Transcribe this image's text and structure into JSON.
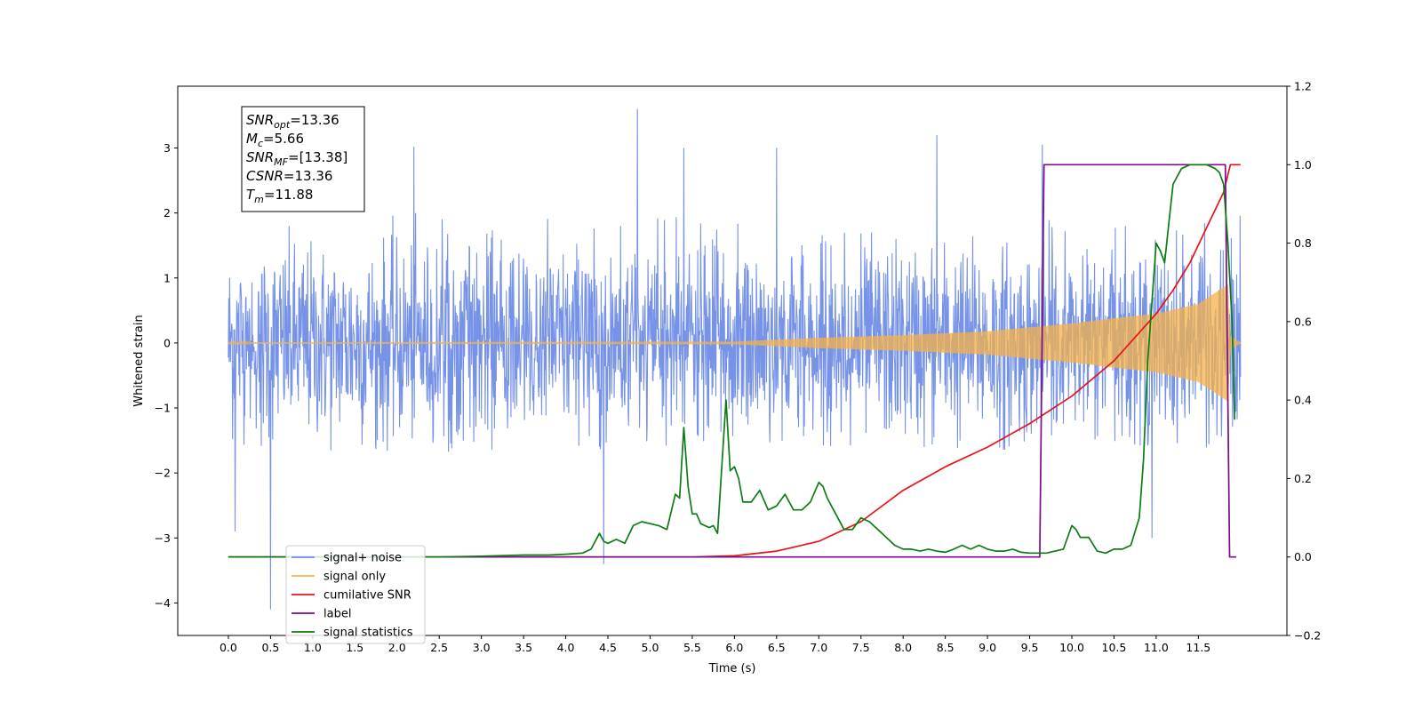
{
  "chart_data": {
    "type": "line",
    "title": "",
    "xlabel": "Time (s)",
    "ylabel": "Whitened strain",
    "xlim": [
      -0.6,
      12.55
    ],
    "ylim": [
      -4.5,
      3.95
    ],
    "y2lim": [
      -0.2,
      1.2
    ],
    "x_ticks": [
      0.0,
      0.5,
      1.0,
      1.5,
      2.0,
      2.5,
      3.0,
      3.5,
      4.0,
      4.5,
      5.0,
      5.5,
      6.0,
      6.5,
      7.0,
      7.5,
      8.0,
      8.5,
      9.0,
      9.5,
      10.0,
      10.5,
      11.0,
      11.5
    ],
    "x_tick_labels": [
      "0.0",
      "0.5",
      "1.0",
      "1.5",
      "2.0",
      "2.5",
      "3.0",
      "3.5",
      "4.0",
      "4.5",
      "5.0",
      "5.5",
      "6.0",
      "6.5",
      "7.0",
      "7.5",
      "8.0",
      "8.5",
      "9.0",
      "9.5",
      "10.0",
      "10.5",
      "11.0",
      "11.5"
    ],
    "y_ticks": [
      -4,
      -3,
      -2,
      -1,
      0,
      1,
      2,
      3
    ],
    "y_tick_labels": [
      "−4",
      "−3",
      "−2",
      "−1",
      "0",
      "1",
      "2",
      "3"
    ],
    "y2_ticks": [
      -0.2,
      0.0,
      0.2,
      0.4,
      0.6,
      0.8,
      1.0,
      1.2
    ],
    "y2_tick_labels": [
      "−0.2",
      "0.0",
      "0.2",
      "0.4",
      "0.6",
      "0.8",
      "1.0",
      "1.2"
    ],
    "grid": false,
    "legend_position": "lower-left",
    "annotation": {
      "lines": [
        {
          "base": "SNR",
          "sub": "opt",
          "value": "=13.36"
        },
        {
          "base": "M",
          "sub": "c",
          "value": "=5.66"
        },
        {
          "base": "SNR",
          "sub": "MF",
          "value": "=[13.38]"
        },
        {
          "base": "CSNR",
          "sub": "",
          "value": "=13.36"
        },
        {
          "base": "T",
          "sub": "m",
          "value": "=11.88"
        }
      ]
    },
    "series": [
      {
        "name": "signal+ noise",
        "axis": "left",
        "color": "#6f8de6",
        "style": "noise",
        "x_range": [
          0.0,
          12.0
        ],
        "typical_max": 2.0,
        "typical_min": -1.7,
        "peaks": [
          [
            0.5,
            -4.1
          ],
          [
            4.45,
            -3.4
          ],
          [
            4.85,
            3.6
          ],
          [
            2.2,
            3.02
          ],
          [
            5.4,
            3.0
          ],
          [
            8.4,
            3.2
          ],
          [
            9.65,
            3.05
          ],
          [
            6.5,
            3.0
          ],
          [
            0.08,
            -2.9
          ],
          [
            10.95,
            -3.0
          ]
        ]
      },
      {
        "name": "signal only",
        "axis": "left",
        "color": "#f5b24a",
        "style": "chirp",
        "x_range": [
          0.0,
          12.0
        ],
        "envelope": [
          [
            0.0,
            0.01
          ],
          [
            6.0,
            0.02
          ],
          [
            7.0,
            0.08
          ],
          [
            8.0,
            0.12
          ],
          [
            9.0,
            0.18
          ],
          [
            9.5,
            0.24
          ],
          [
            10.0,
            0.3
          ],
          [
            10.5,
            0.38
          ],
          [
            11.0,
            0.45
          ],
          [
            11.5,
            0.6
          ],
          [
            11.85,
            0.9
          ],
          [
            11.88,
            0.1
          ],
          [
            12.0,
            0.01
          ]
        ]
      },
      {
        "name": "cumilative SNR",
        "axis": "right",
        "color": "#e8141a",
        "style": "line",
        "x": [
          0.0,
          5.5,
          6.0,
          6.5,
          7.0,
          7.5,
          8.0,
          8.5,
          9.0,
          9.5,
          10.0,
          10.5,
          11.0,
          11.2,
          11.4,
          11.6,
          11.8,
          11.88,
          12.0
        ],
        "y": [
          0.0,
          0.0,
          0.003,
          0.015,
          0.04,
          0.09,
          0.17,
          0.23,
          0.28,
          0.34,
          0.41,
          0.5,
          0.62,
          0.68,
          0.75,
          0.84,
          0.93,
          1.0,
          1.0
        ]
      },
      {
        "name": "label",
        "axis": "right",
        "color": "#7b0c8a",
        "style": "line",
        "x": [
          0.0,
          9.62,
          9.67,
          11.82,
          11.87,
          11.95
        ],
        "y": [
          0.0,
          0.0,
          1.0,
          1.0,
          0.0,
          0.0
        ]
      },
      {
        "name": "signal statistics",
        "axis": "right",
        "color": "#0b7d12",
        "style": "line",
        "x": [
          0.0,
          2.5,
          3.0,
          3.5,
          3.8,
          4.0,
          4.2,
          4.3,
          4.4,
          4.45,
          4.5,
          4.6,
          4.7,
          4.8,
          4.9,
          5.0,
          5.1,
          5.2,
          5.3,
          5.35,
          5.4,
          5.45,
          5.5,
          5.55,
          5.6,
          5.7,
          5.75,
          5.8,
          5.9,
          5.95,
          6.0,
          6.05,
          6.1,
          6.2,
          6.3,
          6.4,
          6.5,
          6.6,
          6.7,
          6.8,
          6.9,
          7.0,
          7.05,
          7.1,
          7.2,
          7.3,
          7.4,
          7.5,
          7.6,
          7.7,
          7.8,
          7.9,
          8.0,
          8.1,
          8.2,
          8.3,
          8.4,
          8.5,
          8.6,
          8.7,
          8.8,
          8.9,
          9.0,
          9.1,
          9.2,
          9.3,
          9.4,
          9.5,
          9.6,
          9.7,
          9.8,
          9.9,
          10.0,
          10.05,
          10.1,
          10.2,
          10.3,
          10.4,
          10.5,
          10.6,
          10.7,
          10.8,
          10.85,
          10.9,
          11.0,
          11.05,
          11.1,
          11.15,
          11.2,
          11.25,
          11.3,
          11.4,
          11.5,
          11.6,
          11.7,
          11.75,
          11.8,
          11.85,
          11.9,
          11.93
        ],
        "y": [
          0.0,
          0.0,
          0.002,
          0.005,
          0.005,
          0.007,
          0.01,
          0.02,
          0.06,
          0.04,
          0.035,
          0.045,
          0.035,
          0.08,
          0.09,
          0.085,
          0.08,
          0.07,
          0.16,
          0.15,
          0.33,
          0.18,
          0.11,
          0.11,
          0.085,
          0.075,
          0.08,
          0.06,
          0.4,
          0.22,
          0.23,
          0.2,
          0.14,
          0.14,
          0.17,
          0.12,
          0.13,
          0.16,
          0.12,
          0.12,
          0.14,
          0.19,
          0.18,
          0.15,
          0.11,
          0.07,
          0.07,
          0.1,
          0.09,
          0.07,
          0.05,
          0.03,
          0.02,
          0.02,
          0.015,
          0.02,
          0.015,
          0.012,
          0.02,
          0.03,
          0.02,
          0.03,
          0.02,
          0.015,
          0.015,
          0.02,
          0.012,
          0.01,
          0.01,
          0.01,
          0.015,
          0.02,
          0.08,
          0.07,
          0.05,
          0.05,
          0.015,
          0.01,
          0.02,
          0.02,
          0.03,
          0.1,
          0.25,
          0.5,
          0.8,
          0.78,
          0.75,
          0.85,
          0.95,
          0.97,
          0.99,
          1.0,
          1.0,
          1.0,
          0.99,
          0.98,
          0.95,
          0.8,
          0.6,
          0.35
        ]
      }
    ],
    "legend": [
      {
        "label": "signal+ noise",
        "color": "#6f8de6"
      },
      {
        "label": "signal only",
        "color": "#f5b24a"
      },
      {
        "label": "cumilative SNR",
        "color": "#e8141a"
      },
      {
        "label": "label",
        "color": "#7b0c8a"
      },
      {
        "label": "signal statistics",
        "color": "#0b7d12"
      }
    ]
  }
}
